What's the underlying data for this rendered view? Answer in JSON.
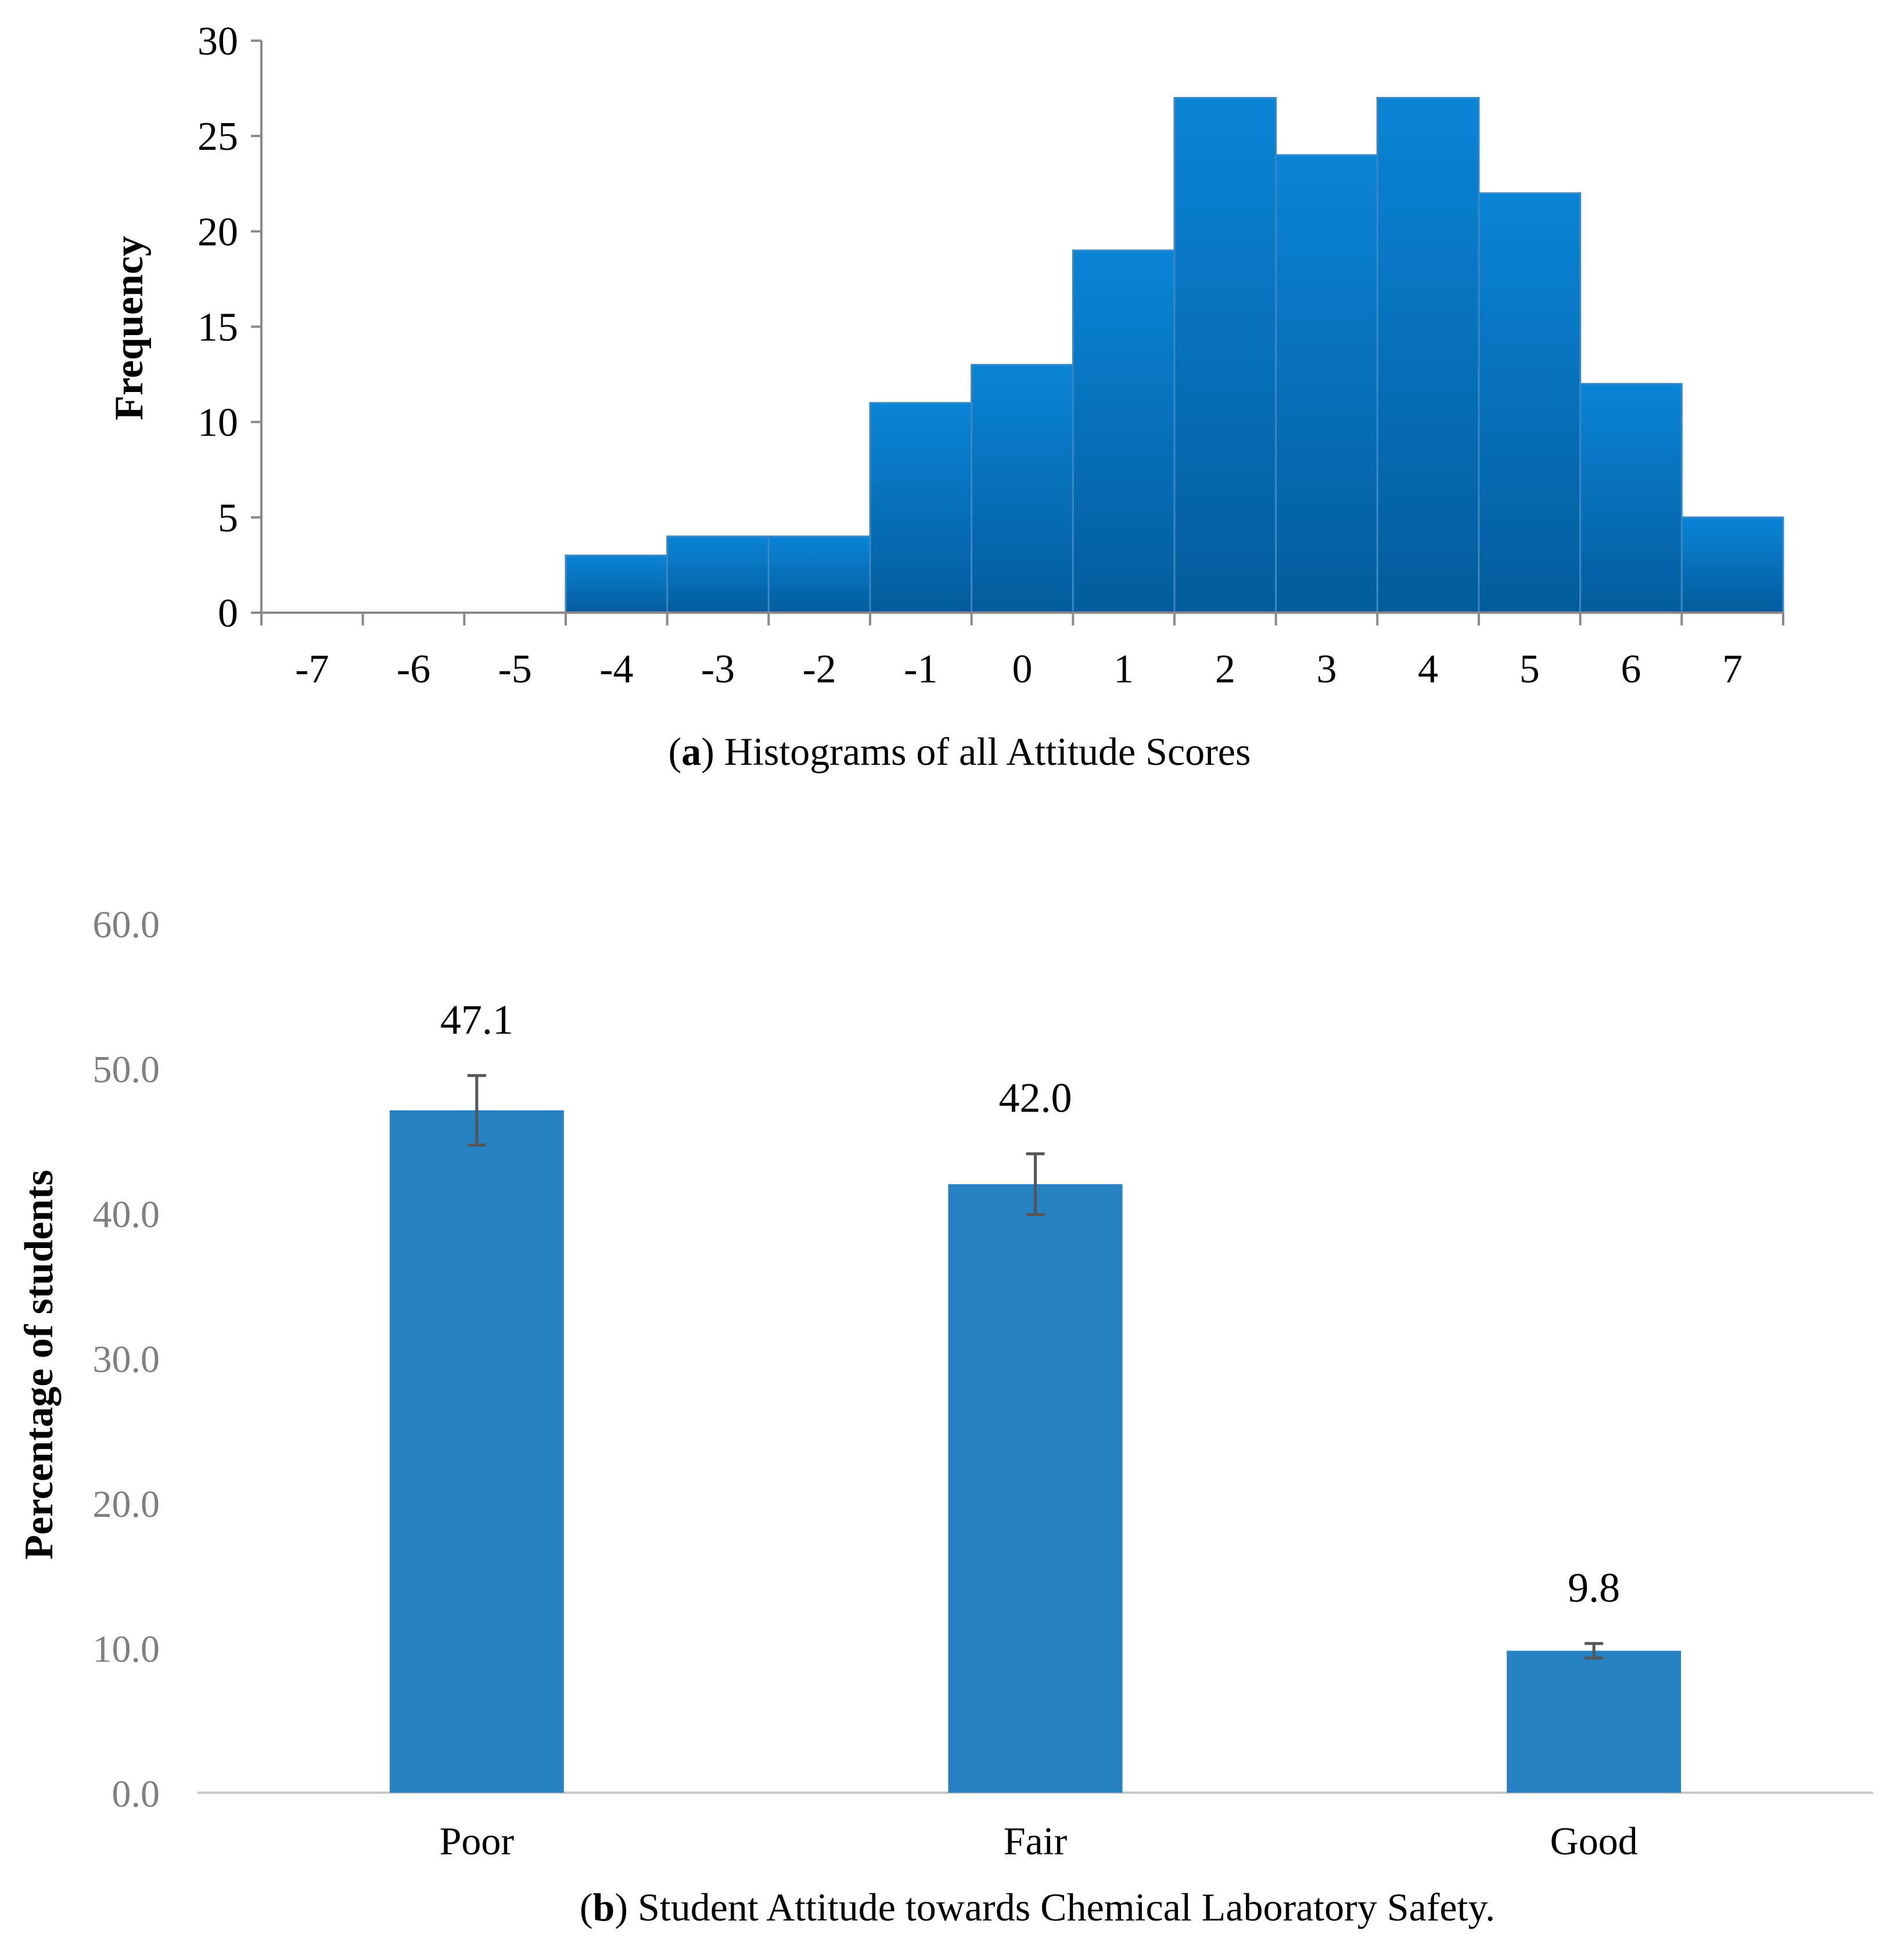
{
  "chart_data": [
    {
      "id": "a",
      "type": "bar",
      "subtype": "histogram",
      "categories": [
        "-7",
        "-6",
        "-5",
        "-4",
        "-3",
        "-2",
        "-1",
        "0",
        "1",
        "2",
        "3",
        "4",
        "5",
        "6",
        "7"
      ],
      "values": [
        0,
        0,
        0,
        3,
        4,
        4,
        11,
        13,
        19,
        27,
        24,
        27,
        22,
        12,
        5
      ],
      "ylabel": "Frequency",
      "xlabel": "",
      "ylim": [
        0,
        30
      ],
      "yticks": [
        0,
        5,
        10,
        15,
        20,
        25,
        30
      ],
      "caption_letter": "a",
      "caption_text": "Histograms of all Attitude Scores",
      "bar_color": "#0a7fd0",
      "grid": false
    },
    {
      "id": "b",
      "type": "bar",
      "categories": [
        "Poor",
        "Fair",
        "Good"
      ],
      "values": [
        47.1,
        42.0,
        9.8
      ],
      "value_labels": [
        "47.1",
        "42.0",
        "9.8"
      ],
      "errors": [
        2.4,
        2.1,
        0.5
      ],
      "ylabel": "Percentage of students",
      "xlabel": "",
      "ylim": [
        0,
        60
      ],
      "yticks": [
        "0.0",
        "10.0",
        "20.0",
        "30.0",
        "40.0",
        "50.0",
        "60.0"
      ],
      "caption_letter": "b",
      "caption_text": "Student Attitude towards Chemical Laboratory Safety.",
      "bar_color": "#2781c3",
      "grid": false
    }
  ]
}
